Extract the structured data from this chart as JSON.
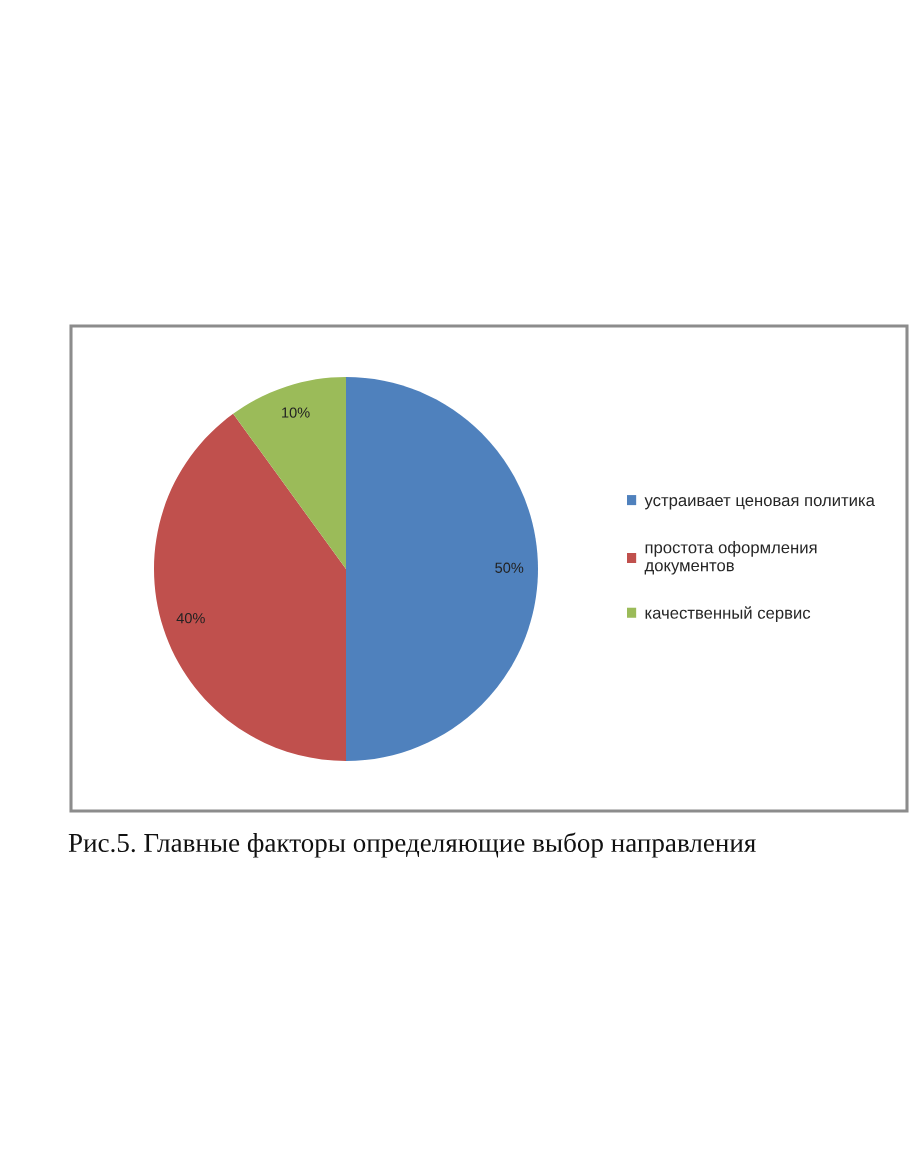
{
  "chart_data": {
    "type": "pie",
    "categories": [
      "устраивает ценовая политика",
      "простота оформления\nдокументов",
      "качественный сервис"
    ],
    "values": [
      50,
      40,
      10
    ],
    "value_labels": [
      "50%",
      "40%",
      "10%"
    ],
    "colors": [
      "#4f81bd",
      "#c0504d",
      "#9bbb59"
    ],
    "legend": "right",
    "annotations": [
      "Рис.5. Главные факторы определяющие выбор направления"
    ]
  }
}
